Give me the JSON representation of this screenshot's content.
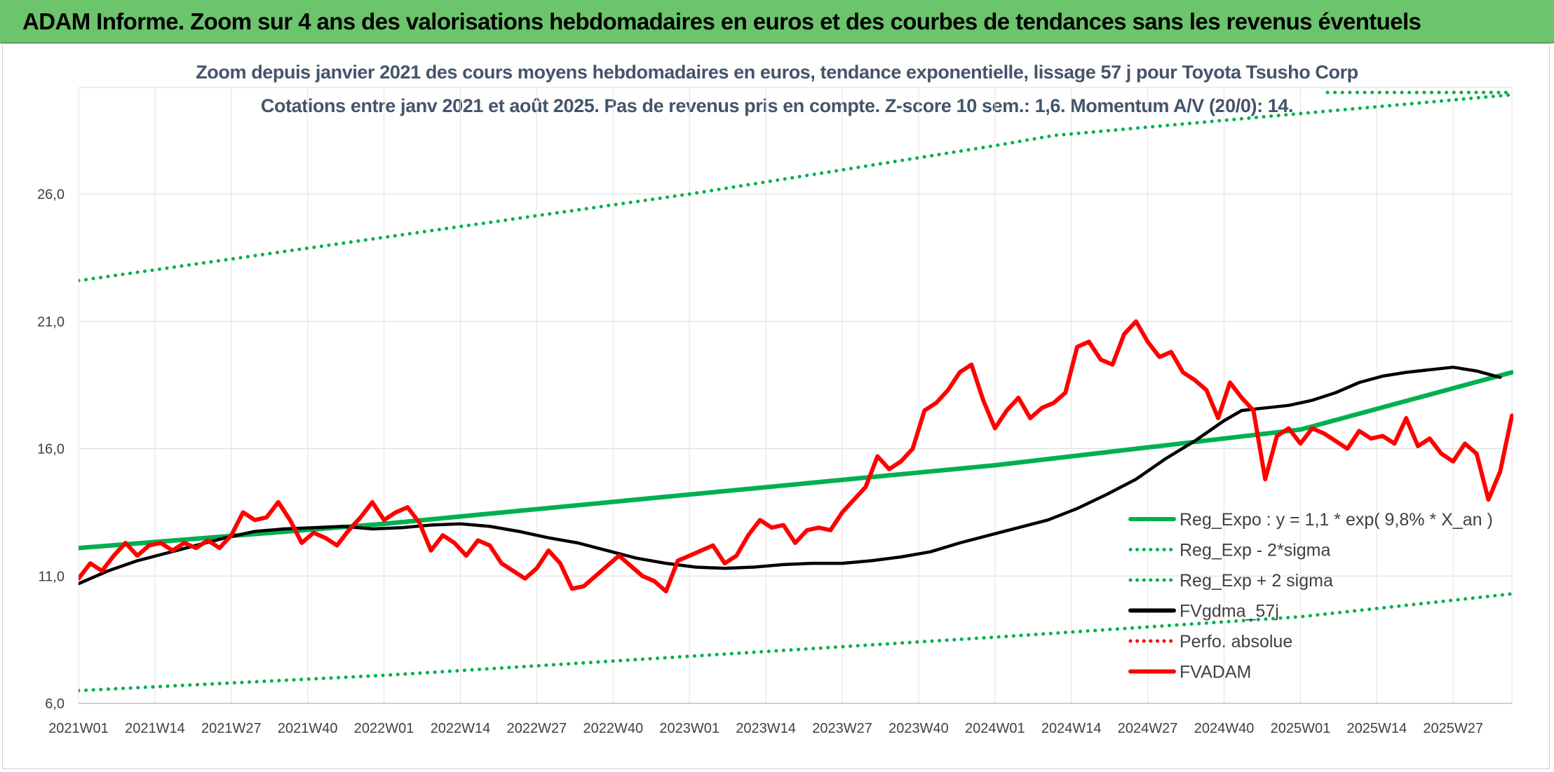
{
  "banner": {
    "title": "ADAM Informe. Zoom sur 4 ans des valorisations hebdomadaires en euros et des courbes de tendances sans les revenus éventuels",
    "color": "#6cc46c"
  },
  "chart_data": {
    "type": "line",
    "title": "Zoom depuis janvier 2021 des cours moyens hebdomadaires en euros, tendance exponentielle, lissage 57 j pour Toyota Tsusho Corp",
    "subtitle": "Cotations entre janv 2021 et août 2025. Pas de revenus pris en compte. Z-score 10 sem.: 1,6. Momentum A/V (20/0): 14.",
    "xlabel": "",
    "ylabel": "",
    "ylim": [
      6,
      30
    ],
    "grid": true,
    "legend_position": "bottom-right",
    "x_ticks": [
      "2021W01",
      "2021W14",
      "2021W27",
      "2021W40",
      "2022W01",
      "2022W14",
      "2022W27",
      "2022W40",
      "2023W01",
      "2023W14",
      "2023W27",
      "2023W40",
      "2024W01",
      "2024W14",
      "2024W27",
      "2024W40",
      "2025W01",
      "2025W14",
      "2025W27"
    ],
    "y_ticks": [
      6,
      11,
      16,
      21,
      26
    ],
    "y_tick_labels": [
      "6,0",
      "11,0",
      "16,0",
      "21,0",
      "26,0"
    ],
    "week_count": 245,
    "series": [
      {
        "name": "Reg_Expo : y = 1,1 * exp( 9,8% *  X_an )",
        "color": "#00b050",
        "style": "solid",
        "points": [
          [
            0,
            12.1
          ],
          [
            52,
            13.05
          ],
          [
            104,
            14.2
          ],
          [
            156,
            15.35
          ],
          [
            208,
            16.75
          ],
          [
            244,
            19.0
          ]
        ]
      },
      {
        "name": "Reg_Exp - 2*sigma",
        "color": "#00b050",
        "style": "dotted",
        "points": [
          [
            0,
            6.5
          ],
          [
            52,
            7.1
          ],
          [
            104,
            7.85
          ],
          [
            156,
            8.6
          ],
          [
            208,
            9.4
          ],
          [
            244,
            10.3
          ]
        ]
      },
      {
        "name": "Reg_Exp + 2 sigma",
        "color": "#00b050",
        "style": "dotted",
        "points": [
          [
            0,
            22.6
          ],
          [
            52,
            24.3
          ],
          [
            104,
            26.0
          ],
          [
            156,
            27.9
          ],
          [
            166,
            28.3
          ],
          [
            244,
            29.9
          ]
        ]
      },
      {
        "name": "FVgdma_57j",
        "color": "#000000",
        "style": "solid",
        "points": [
          [
            0,
            10.7
          ],
          [
            5,
            11.2
          ],
          [
            10,
            11.6
          ],
          [
            15,
            11.9
          ],
          [
            20,
            12.2
          ],
          [
            25,
            12.5
          ],
          [
            30,
            12.75
          ],
          [
            35,
            12.85
          ],
          [
            40,
            12.9
          ],
          [
            45,
            12.95
          ],
          [
            50,
            12.85
          ],
          [
            55,
            12.9
          ],
          [
            60,
            13.0
          ],
          [
            65,
            13.05
          ],
          [
            70,
            12.95
          ],
          [
            75,
            12.75
          ],
          [
            80,
            12.5
          ],
          [
            85,
            12.3
          ],
          [
            90,
            12.0
          ],
          [
            95,
            11.7
          ],
          [
            100,
            11.5
          ],
          [
            105,
            11.35
          ],
          [
            110,
            11.3
          ],
          [
            115,
            11.35
          ],
          [
            120,
            11.45
          ],
          [
            125,
            11.5
          ],
          [
            130,
            11.5
          ],
          [
            135,
            11.6
          ],
          [
            140,
            11.75
          ],
          [
            145,
            11.95
          ],
          [
            150,
            12.3
          ],
          [
            155,
            12.6
          ],
          [
            160,
            12.9
          ],
          [
            165,
            13.2
          ],
          [
            170,
            13.65
          ],
          [
            175,
            14.2
          ],
          [
            180,
            14.8
          ],
          [
            185,
            15.6
          ],
          [
            190,
            16.3
          ],
          [
            195,
            17.1
          ],
          [
            198,
            17.5
          ],
          [
            202,
            17.6
          ],
          [
            206,
            17.7
          ],
          [
            210,
            17.9
          ],
          [
            214,
            18.2
          ],
          [
            218,
            18.6
          ],
          [
            222,
            18.85
          ],
          [
            226,
            19.0
          ],
          [
            230,
            19.1
          ],
          [
            234,
            19.2
          ],
          [
            238,
            19.05
          ],
          [
            242,
            18.8
          ]
        ]
      },
      {
        "name": "Perfo. absolue",
        "color": "#ff0000",
        "style": "dotted",
        "points": []
      },
      {
        "name": "FVADAM",
        "color": "#ff0000",
        "style": "solid",
        "points": [
          [
            0,
            10.9
          ],
          [
            2,
            11.5
          ],
          [
            4,
            11.2
          ],
          [
            6,
            11.8
          ],
          [
            8,
            12.3
          ],
          [
            10,
            11.8
          ],
          [
            12,
            12.2
          ],
          [
            14,
            12.3
          ],
          [
            16,
            12.0
          ],
          [
            18,
            12.3
          ],
          [
            20,
            12.1
          ],
          [
            22,
            12.4
          ],
          [
            24,
            12.1
          ],
          [
            26,
            12.6
          ],
          [
            28,
            13.5
          ],
          [
            30,
            13.2
          ],
          [
            32,
            13.3
          ],
          [
            34,
            13.9
          ],
          [
            36,
            13.2
          ],
          [
            38,
            12.3
          ],
          [
            40,
            12.7
          ],
          [
            42,
            12.5
          ],
          [
            44,
            12.2
          ],
          [
            46,
            12.8
          ],
          [
            48,
            13.3
          ],
          [
            50,
            13.9
          ],
          [
            52,
            13.2
          ],
          [
            54,
            13.5
          ],
          [
            56,
            13.7
          ],
          [
            58,
            13.1
          ],
          [
            60,
            12.0
          ],
          [
            62,
            12.6
          ],
          [
            64,
            12.3
          ],
          [
            66,
            11.8
          ],
          [
            68,
            12.4
          ],
          [
            70,
            12.2
          ],
          [
            72,
            11.5
          ],
          [
            74,
            11.2
          ],
          [
            76,
            10.9
          ],
          [
            78,
            11.3
          ],
          [
            80,
            12.0
          ],
          [
            82,
            11.5
          ],
          [
            84,
            10.5
          ],
          [
            86,
            10.6
          ],
          [
            88,
            11.0
          ],
          [
            90,
            11.4
          ],
          [
            92,
            11.8
          ],
          [
            94,
            11.4
          ],
          [
            96,
            11.0
          ],
          [
            98,
            10.8
          ],
          [
            100,
            10.4
          ],
          [
            102,
            11.6
          ],
          [
            104,
            11.8
          ],
          [
            106,
            12.0
          ],
          [
            108,
            12.2
          ],
          [
            110,
            11.5
          ],
          [
            112,
            11.8
          ],
          [
            114,
            12.6
          ],
          [
            116,
            13.2
          ],
          [
            118,
            12.9
          ],
          [
            120,
            13.0
          ],
          [
            122,
            12.3
          ],
          [
            124,
            12.8
          ],
          [
            126,
            12.9
          ],
          [
            128,
            12.8
          ],
          [
            130,
            13.5
          ],
          [
            132,
            14.0
          ],
          [
            134,
            14.5
          ],
          [
            136,
            15.7
          ],
          [
            138,
            15.2
          ],
          [
            140,
            15.5
          ],
          [
            142,
            16.0
          ],
          [
            144,
            17.5
          ],
          [
            146,
            17.8
          ],
          [
            148,
            18.3
          ],
          [
            150,
            19.0
          ],
          [
            152,
            19.3
          ],
          [
            154,
            17.9
          ],
          [
            156,
            16.8
          ],
          [
            158,
            17.5
          ],
          [
            160,
            18.0
          ],
          [
            162,
            17.2
          ],
          [
            164,
            17.6
          ],
          [
            166,
            17.8
          ],
          [
            168,
            18.2
          ],
          [
            170,
            20.0
          ],
          [
            172,
            20.2
          ],
          [
            174,
            19.5
          ],
          [
            176,
            19.3
          ],
          [
            178,
            20.5
          ],
          [
            180,
            21.0
          ],
          [
            182,
            20.2
          ],
          [
            184,
            19.6
          ],
          [
            186,
            19.8
          ],
          [
            188,
            19.0
          ],
          [
            190,
            18.7
          ],
          [
            192,
            18.3
          ],
          [
            194,
            17.2
          ],
          [
            196,
            18.6
          ],
          [
            198,
            18.0
          ],
          [
            200,
            17.5
          ],
          [
            202,
            14.8
          ],
          [
            204,
            16.5
          ],
          [
            206,
            16.8
          ],
          [
            208,
            16.2
          ],
          [
            210,
            16.8
          ],
          [
            212,
            16.6
          ],
          [
            214,
            16.3
          ],
          [
            216,
            16.0
          ],
          [
            218,
            16.7
          ],
          [
            220,
            16.4
          ],
          [
            222,
            16.5
          ],
          [
            224,
            16.2
          ],
          [
            226,
            17.2
          ],
          [
            228,
            16.1
          ],
          [
            230,
            16.4
          ],
          [
            232,
            15.8
          ],
          [
            234,
            15.5
          ],
          [
            236,
            16.2
          ],
          [
            238,
            15.8
          ],
          [
            240,
            14.0
          ],
          [
            242,
            15.1
          ],
          [
            244,
            17.3
          ]
        ]
      }
    ]
  }
}
